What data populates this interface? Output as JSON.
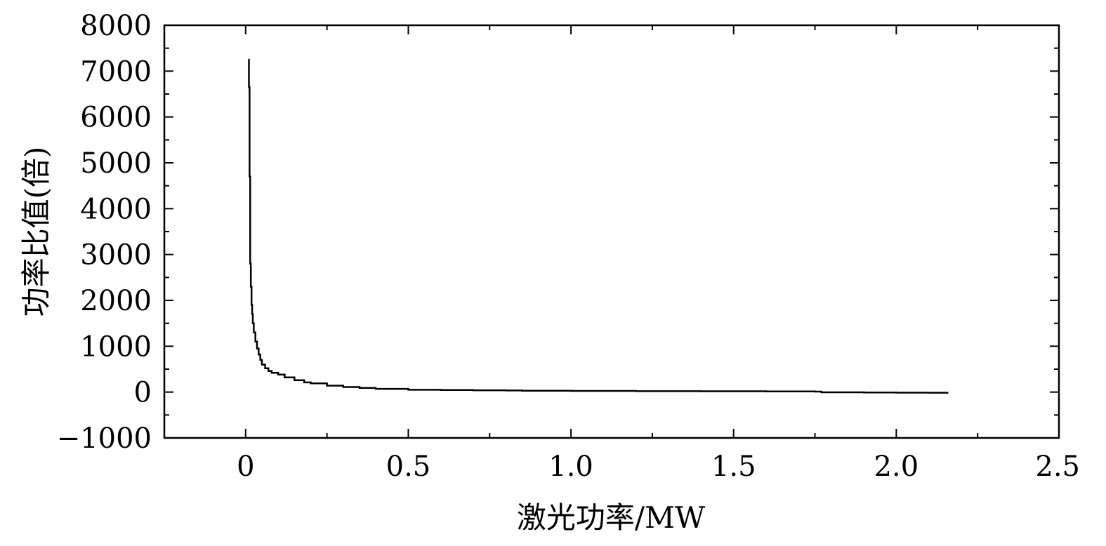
{
  "chart_data": {
    "type": "line",
    "title": "",
    "xlabel": "激光功率/MW",
    "ylabel": "功率比值(倍)",
    "xlim": [
      -0.25,
      2.5
    ],
    "ylim": [
      -1000,
      8000
    ],
    "xticks": [
      0,
      0.5,
      1.0,
      1.5,
      2.0,
      2.5
    ],
    "xtick_labels": [
      "0",
      "0.5",
      "1.0",
      "1.5",
      "2.0",
      "2.5"
    ],
    "yticks": [
      -1000,
      0,
      1000,
      2000,
      3000,
      4000,
      5000,
      6000,
      7000,
      8000
    ],
    "ytick_labels": [
      "−1000",
      "0",
      "1000",
      "2000",
      "3000",
      "4000",
      "5000",
      "6000",
      "7000",
      "8000"
    ],
    "grid": false,
    "legend": "none",
    "series": [
      {
        "color": "#000000",
        "x": [
          0.008,
          0.01,
          0.012,
          0.014,
          0.016,
          0.018,
          0.02,
          0.022,
          0.025,
          0.03,
          0.035,
          0.04,
          0.045,
          0.05,
          0.06,
          0.07,
          0.08,
          0.1,
          0.12,
          0.15,
          0.18,
          0.2,
          0.25,
          0.3,
          0.35,
          0.4,
          0.5,
          0.6,
          0.7,
          0.8,
          0.85,
          0.9,
          1.0,
          1.2,
          1.4,
          1.6,
          1.75,
          1.77,
          1.9,
          2.0,
          2.1,
          2.16
        ],
        "y": [
          7250,
          6650,
          4700,
          2800,
          2300,
          1900,
          1700,
          1500,
          1300,
          1100,
          950,
          820,
          700,
          600,
          520,
          460,
          420,
          380,
          320,
          260,
          210,
          190,
          140,
          110,
          90,
          70,
          50,
          45,
          40,
          35,
          30,
          28,
          25,
          20,
          18,
          15,
          10,
          -5,
          -10,
          -12,
          -15,
          -15
        ]
      }
    ]
  }
}
